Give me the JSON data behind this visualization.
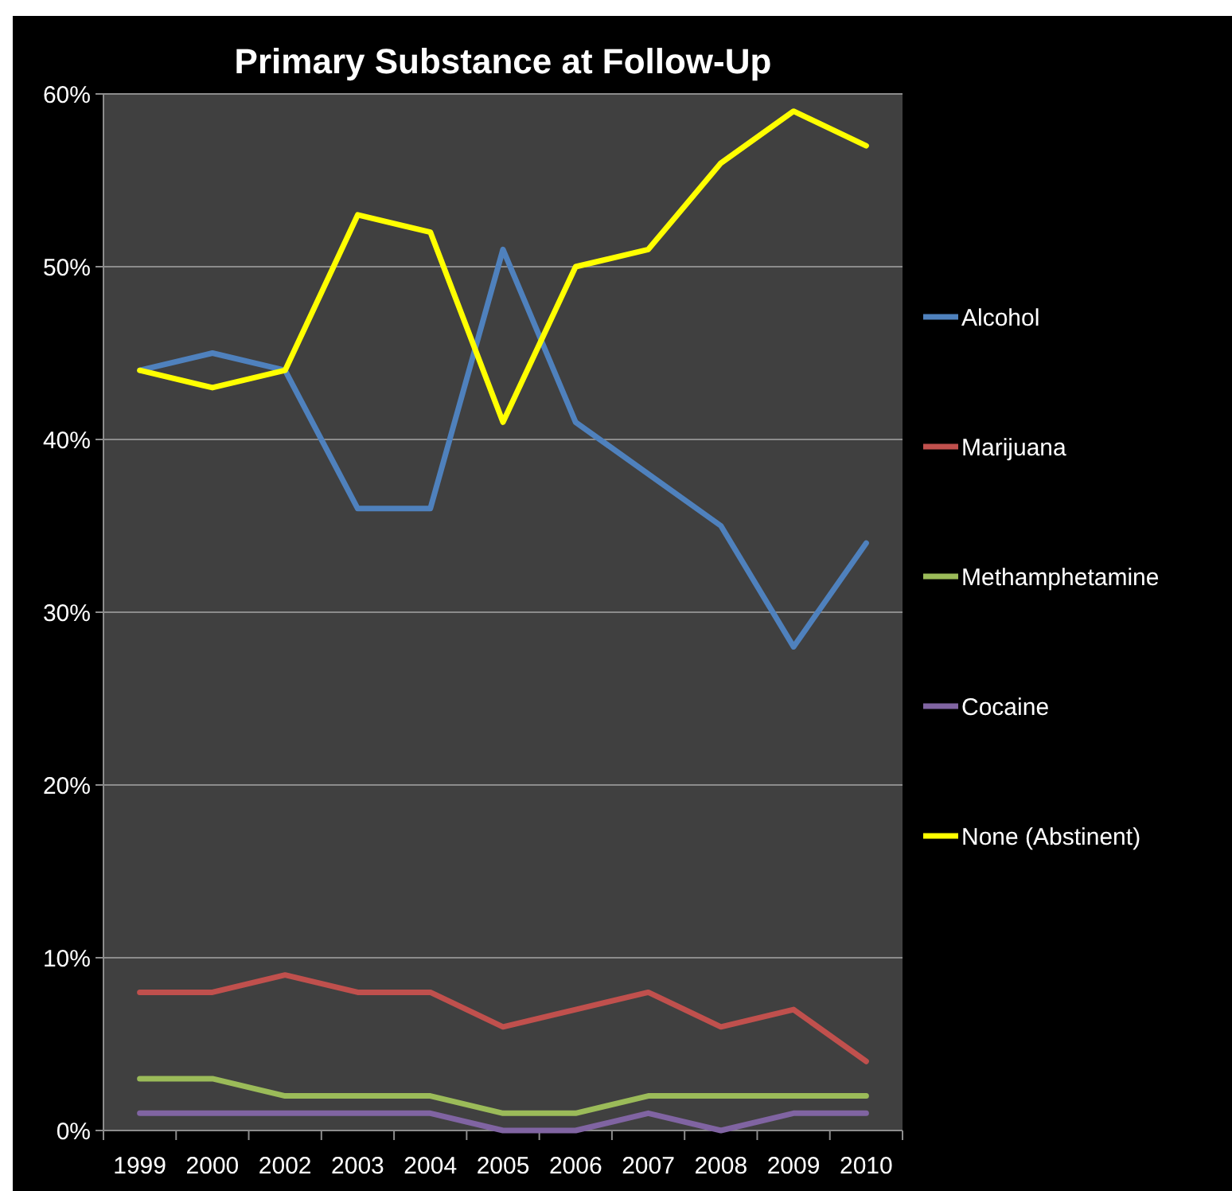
{
  "chart_data": {
    "type": "line",
    "title": "Primary Substance at Follow-Up",
    "categories": [
      "1999",
      "2000",
      "2002",
      "2003",
      "2004",
      "2005",
      "2006",
      "2007",
      "2008",
      "2009",
      "2010"
    ],
    "series": [
      {
        "name": "Alcohol",
        "color": "#4f81bd",
        "values": [
          44,
          45,
          44,
          36,
          36,
          51,
          41,
          38,
          35,
          28,
          34
        ]
      },
      {
        "name": "Marijuana",
        "color": "#c0504d",
        "values": [
          8,
          8,
          9,
          8,
          8,
          6,
          7,
          8,
          6,
          7,
          4
        ]
      },
      {
        "name": "Methamphetamine",
        "color": "#9bbb59",
        "values": [
          3,
          3,
          2,
          2,
          2,
          1,
          1,
          2,
          2,
          2,
          2
        ]
      },
      {
        "name": "Cocaine",
        "color": "#8064a2",
        "values": [
          1,
          1,
          1,
          1,
          1,
          0,
          0,
          1,
          0,
          1,
          1
        ]
      },
      {
        "name": "None (Abstinent)",
        "color": "#ffff00",
        "values": [
          44,
          43,
          44,
          53,
          52,
          41,
          50,
          51,
          56,
          59,
          57
        ]
      }
    ],
    "ylim": [
      0,
      60
    ],
    "yticks": [
      {
        "value": 0,
        "label": "0%"
      },
      {
        "value": 10,
        "label": "10%"
      },
      {
        "value": 20,
        "label": "20%"
      },
      {
        "value": 30,
        "label": "30%"
      },
      {
        "value": 40,
        "label": "40%"
      },
      {
        "value": 50,
        "label": "50%"
      },
      {
        "value": 60,
        "label": "60%"
      }
    ],
    "grid": "y",
    "legend": "right",
    "marker": "none",
    "line_style": "solid"
  }
}
